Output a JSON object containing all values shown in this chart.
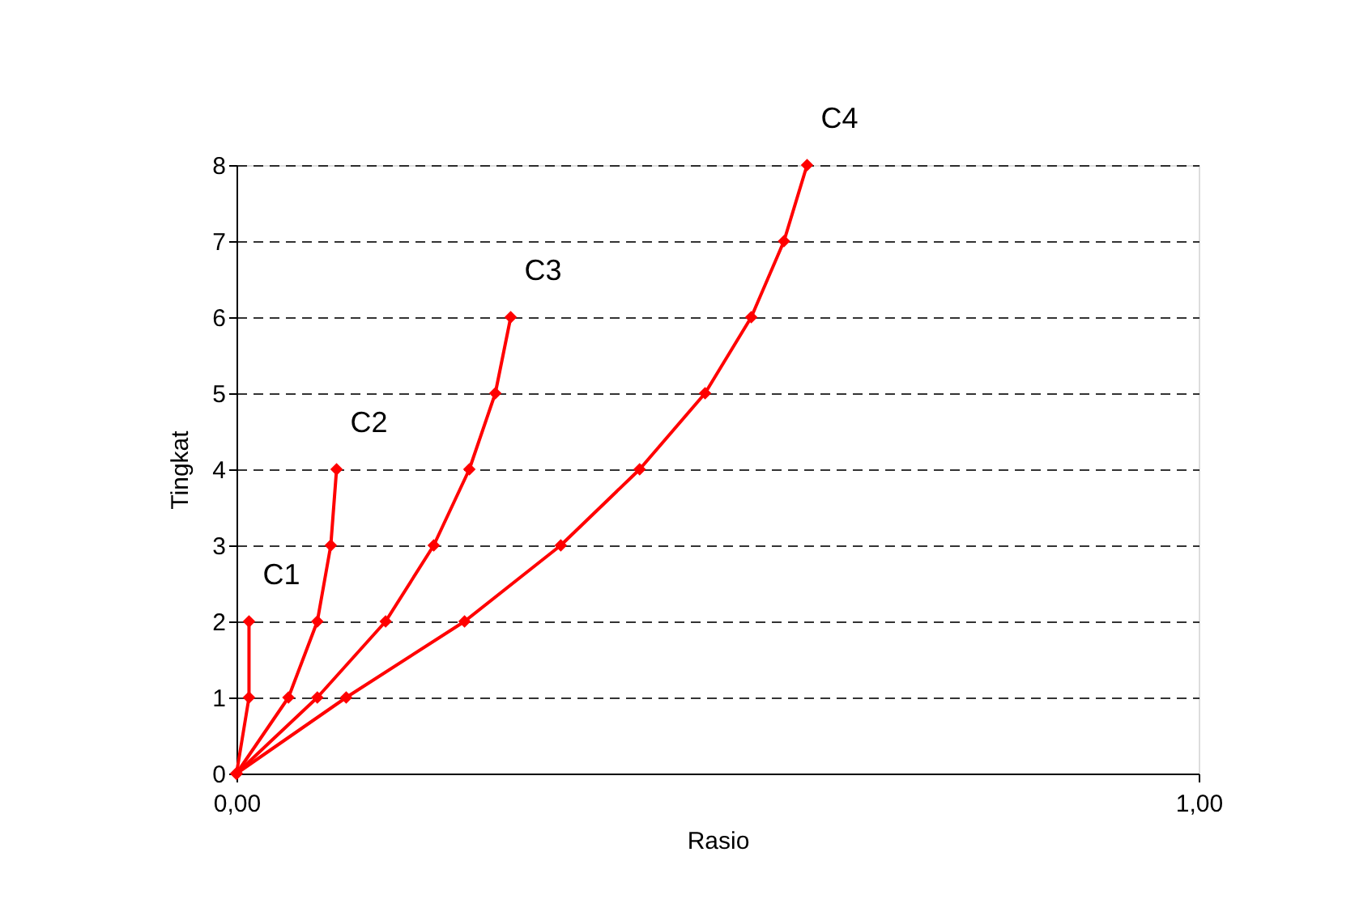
{
  "chart_data": {
    "type": "line",
    "xlabel": "Rasio",
    "ylabel": "Tingkat",
    "xlim": [
      0,
      1
    ],
    "xticks": [
      {
        "value": 0,
        "label": "0,00"
      },
      {
        "value": 1,
        "label": "1,00"
      }
    ],
    "ylim": [
      0,
      8
    ],
    "yticks": [
      0,
      1,
      2,
      3,
      4,
      5,
      6,
      7,
      8
    ],
    "grid": "y",
    "marker": "diamond",
    "line_style": "solid",
    "series": [
      {
        "color": "#ff0000",
        "x": [
          0,
          0.013,
          0.013
        ],
        "values": [
          0,
          1,
          2
        ]
      },
      {
        "color": "#ff0000",
        "x": [
          0,
          0.054,
          0.084,
          0.098,
          0.104
        ],
        "values": [
          0,
          1,
          2,
          3,
          4
        ]
      },
      {
        "color": "#ff0000",
        "x": [
          0,
          0.084,
          0.155,
          0.205,
          0.242,
          0.269,
          0.285
        ],
        "values": [
          0,
          1,
          2,
          3,
          4,
          5,
          6
        ]
      },
      {
        "color": "#ff0000",
        "x": [
          0,
          0.114,
          0.237,
          0.337,
          0.419,
          0.487,
          0.535,
          0.569,
          0.593
        ],
        "values": [
          0,
          1,
          2,
          3,
          4,
          5,
          6,
          7,
          8
        ]
      }
    ],
    "annotations": [
      {
        "text": "C1",
        "x": 0.013,
        "y": 2
      },
      {
        "text": "C2",
        "x": 0.104,
        "y": 4
      },
      {
        "text": "C3",
        "x": 0.285,
        "y": 6
      },
      {
        "text": "C4",
        "x": 0.593,
        "y": 8
      }
    ]
  }
}
